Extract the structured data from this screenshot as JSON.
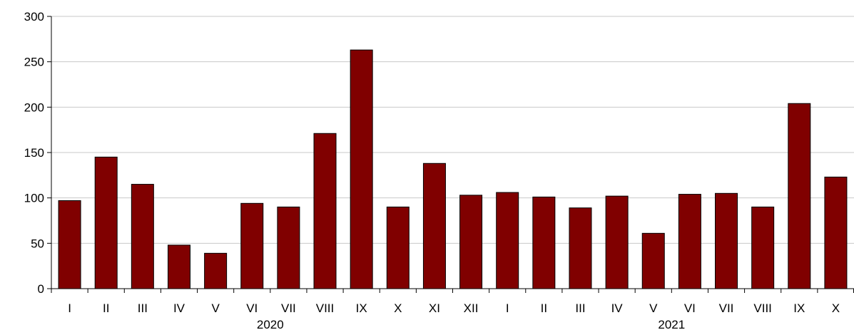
{
  "chart_data": {
    "type": "bar",
    "categories": [
      "I",
      "II",
      "III",
      "IV",
      "V",
      "VI",
      "VII",
      "VIII",
      "IX",
      "X",
      "XI",
      "XII",
      "I",
      "II",
      "III",
      "IV",
      "V",
      "VI",
      "VII",
      "VIII",
      "IX",
      "X"
    ],
    "groups": [
      {
        "label": "2020",
        "count": 12
      },
      {
        "label": "2021",
        "count": 10
      }
    ],
    "values": [
      97,
      145,
      115,
      48,
      39,
      94,
      90,
      171,
      263,
      90,
      138,
      103,
      106,
      101,
      89,
      102,
      61,
      104,
      105,
      90,
      204,
      123
    ],
    "title": "",
    "xlabel": "",
    "ylabel": "",
    "ylim": [
      0,
      300
    ],
    "yticks": [
      0,
      50,
      100,
      150,
      200,
      250,
      300
    ],
    "grid": true,
    "legend": "none",
    "colors": {
      "bar": "#800000",
      "bar_stroke": "#000000",
      "grid": "#c8c8c8",
      "axis": "#000000"
    }
  }
}
